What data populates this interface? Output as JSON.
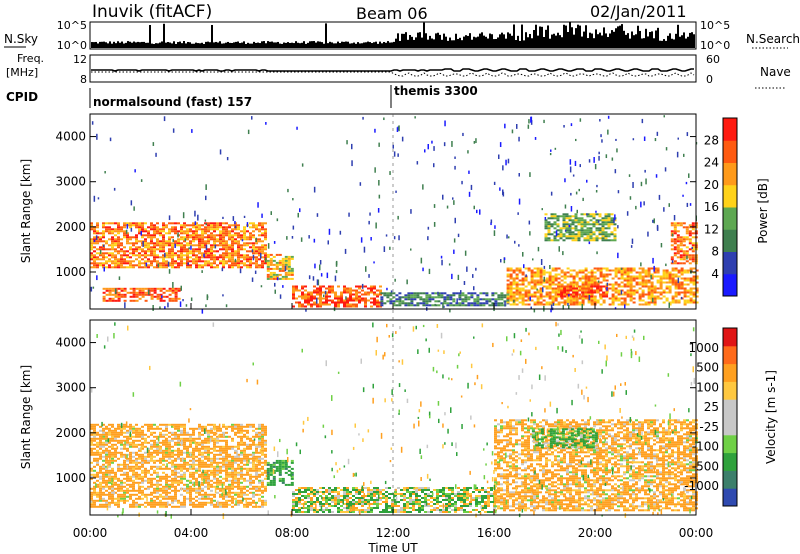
{
  "header": {
    "station": "Inuvik (fitACF)",
    "beam": "Beam 06",
    "date": "02/Jan/2011"
  },
  "nsky_panel": {
    "label": "N.Sky",
    "ticks_left": [
      "10^5",
      "10^0"
    ],
    "ticks_right": [
      "10^5",
      "10^0"
    ],
    "right_label": "N.Search"
  },
  "freq_panel": {
    "label_line1": "Freq.",
    "label_line2": "[MHz]",
    "ticks_left": [
      "12",
      "8"
    ],
    "ticks_right": [
      "60",
      "0"
    ],
    "right_label": "Nave"
  },
  "cpid_panel": {
    "label": "CPID",
    "segments": [
      {
        "name": "normalsound (fast) 157",
        "start": "00:00",
        "end": "12:00"
      },
      {
        "name": "themis 3300",
        "start": "12:00",
        "end": "24:00"
      }
    ]
  },
  "colors": {
    "power_scale": [
      "#1a1aff",
      "#2f3fb0",
      "#3f7f4f",
      "#5ea852",
      "#ffd21a",
      "#ff9a1a",
      "#ff5a10",
      "#ff1a10"
    ],
    "velocity_scale": [
      "#e01515",
      "#ff6a1a",
      "#ffa020",
      "#ffc840",
      "#c8c8c8",
      "#c8c8c8",
      "#6fd046",
      "#2fa23c",
      "#3c7f6b",
      "#2f4ab0"
    ]
  },
  "chart_data": [
    {
      "type": "heatmap",
      "title": "Power",
      "ylabel": "Slant Range [km]",
      "ylim": [
        180,
        4500
      ],
      "yticks": [
        "1000",
        "2000",
        "3000",
        "4000"
      ],
      "xlim": [
        "00:00",
        "24:00"
      ],
      "colorbar_label": "Power [dB]",
      "colorbar_ticks": [
        "4",
        "8",
        "12",
        "16",
        "20",
        "24",
        "28"
      ],
      "echo_regions": [
        {
          "t0": 0.0,
          "t1": 7.0,
          "r0": 1100,
          "r1": 2100,
          "level": 24
        },
        {
          "t0": 0.5,
          "t1": 3.5,
          "r0": 380,
          "r1": 650,
          "level": 26
        },
        {
          "t0": 7.0,
          "t1": 8.0,
          "r0": 850,
          "r1": 1400,
          "level": 20
        },
        {
          "t0": 8.0,
          "t1": 11.5,
          "r0": 250,
          "r1": 700,
          "level": 26
        },
        {
          "t0": 11.5,
          "t1": 16.5,
          "r0": 250,
          "r1": 550,
          "level": 10
        },
        {
          "t0": 16.5,
          "t1": 24.0,
          "r0": 300,
          "r1": 1100,
          "level": 22
        },
        {
          "t0": 18.5,
          "t1": 20.5,
          "r0": 450,
          "r1": 700,
          "level": 28
        },
        {
          "t0": 18.0,
          "t1": 20.8,
          "r0": 1700,
          "r1": 2300,
          "level": 14
        },
        {
          "t0": 23.0,
          "t1": 24.0,
          "r0": 1200,
          "r1": 2100,
          "level": 24
        }
      ]
    },
    {
      "type": "heatmap",
      "title": "Velocity",
      "ylabel": "Slant Range [km]",
      "ylim": [
        180,
        4500
      ],
      "yticks": [
        "1000",
        "2000",
        "3000",
        "4000"
      ],
      "xlim": [
        "00:00",
        "24:00"
      ],
      "xlabel": "Time UT",
      "xticks": [
        "00:00",
        "04:00",
        "08:00",
        "12:00",
        "16:00",
        "20:00",
        "00:00"
      ],
      "colorbar_label": "Velocity [m s-1]",
      "colorbar_ticks": [
        "1000",
        "500",
        "100",
        "25",
        "-25",
        "-100",
        "-500",
        "-1000"
      ],
      "echo_regions": [
        {
          "t0": 0.0,
          "t1": 7.0,
          "r0": 350,
          "r1": 2200,
          "velocity": -200
        },
        {
          "t0": 7.0,
          "t1": 8.0,
          "r0": 850,
          "r1": 1400,
          "velocity": 300
        },
        {
          "t0": 8.0,
          "t1": 16.0,
          "r0": 250,
          "r1": 800,
          "velocity": 50
        },
        {
          "t0": 16.0,
          "t1": 24.0,
          "r0": 300,
          "r1": 2300,
          "velocity": -200
        },
        {
          "t0": 17.5,
          "t1": 20.0,
          "r0": 1700,
          "r1": 2100,
          "velocity": 200
        }
      ]
    }
  ]
}
